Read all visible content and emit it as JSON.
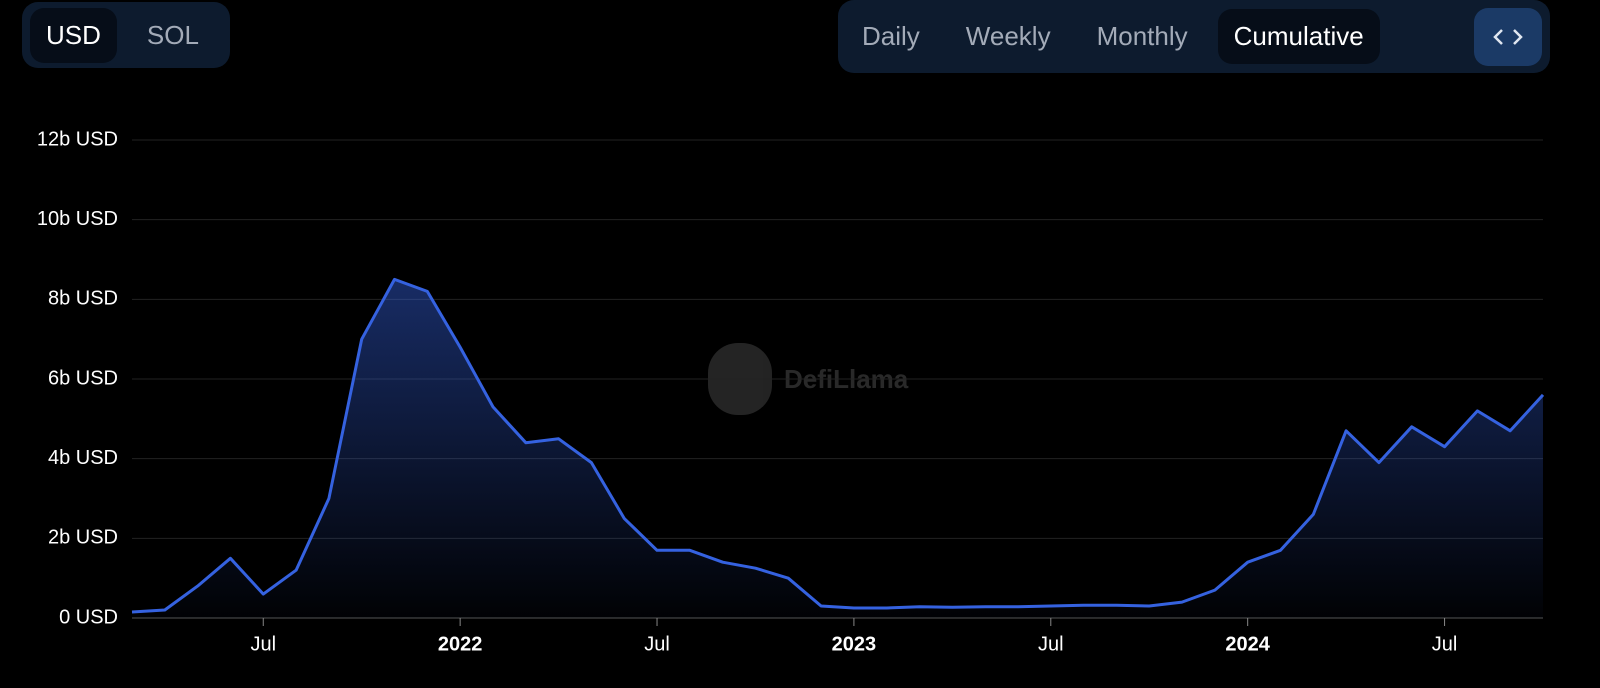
{
  "controls": {
    "currency": [
      "USD",
      "SOL"
    ],
    "currency_active": 0,
    "periods": [
      "Daily",
      "Weekly",
      "Monthly",
      "Cumulative"
    ],
    "period_active": 3
  },
  "chart_data": {
    "type": "line",
    "watermark": "DefiLlama",
    "x": [
      "2021-03",
      "2021-04",
      "2021-05",
      "2021-06",
      "2021-07",
      "2021-08",
      "2021-09",
      "2021-10",
      "2021-11",
      "2021-12",
      "2022-01",
      "2022-02",
      "2022-03",
      "2022-04",
      "2022-05",
      "2022-06",
      "2022-07",
      "2022-08",
      "2022-09",
      "2022-10",
      "2022-11",
      "2022-12",
      "2023-01",
      "2023-02",
      "2023-03",
      "2023-04",
      "2023-05",
      "2023-06",
      "2023-07",
      "2023-08",
      "2023-09",
      "2023-10",
      "2023-11",
      "2023-12",
      "2024-01",
      "2024-02",
      "2024-03",
      "2024-04",
      "2024-05",
      "2024-06",
      "2024-07",
      "2024-08",
      "2024-09",
      "2024-10"
    ],
    "values": [
      0.15,
      0.2,
      0.8,
      1.5,
      0.6,
      1.2,
      3.0,
      7.0,
      8.5,
      8.2,
      6.8,
      5.3,
      4.4,
      4.5,
      3.9,
      2.5,
      1.7,
      1.7,
      1.4,
      1.25,
      1.0,
      0.3,
      0.25,
      0.25,
      0.28,
      0.27,
      0.28,
      0.28,
      0.3,
      0.32,
      0.32,
      0.3,
      0.4,
      0.7,
      1.4,
      1.7,
      2.6,
      4.7,
      3.9,
      4.8,
      4.3,
      5.2,
      4.7,
      5.6
    ],
    "color": "#3562e0",
    "xlim": [
      "2021-03",
      "2024-10"
    ],
    "xticks": [
      {
        "value": "2021-07",
        "label": "Jul"
      },
      {
        "value": "2022-01",
        "label": "2022"
      },
      {
        "value": "2022-07",
        "label": "Jul"
      },
      {
        "value": "2023-01",
        "label": "2023"
      },
      {
        "value": "2023-07",
        "label": "Jul"
      },
      {
        "value": "2024-01",
        "label": "2024"
      },
      {
        "value": "2024-07",
        "label": "Jul"
      }
    ],
    "ylim": [
      0,
      12
    ],
    "yticks": [
      {
        "value": 0,
        "label": "0 USD"
      },
      {
        "value": 2,
        "label": "2b USD"
      },
      {
        "value": 4,
        "label": "4b USD"
      },
      {
        "value": 6,
        "label": "6b USD"
      },
      {
        "value": 8,
        "label": "8b USD"
      },
      {
        "value": 10,
        "label": "10b USD"
      },
      {
        "value": 12,
        "label": "12b USD"
      }
    ],
    "grid": true
  }
}
